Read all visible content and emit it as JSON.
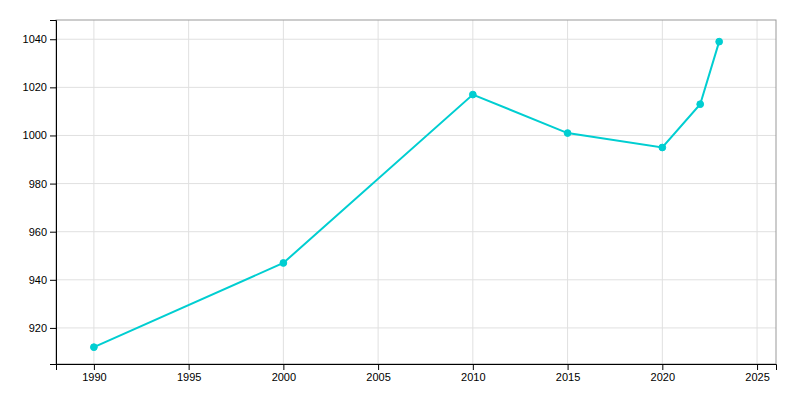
{
  "chart_data": {
    "type": "line",
    "x": [
      1990,
      2000,
      2010,
      2015,
      2020,
      2022,
      2023
    ],
    "values": [
      912,
      947,
      1017,
      1001,
      995,
      1013,
      1039
    ],
    "color": "#00CED1",
    "marker": "circle",
    "xlim": [
      1988,
      2026
    ],
    "ylim": [
      905,
      1048
    ],
    "xticks": [
      1990,
      1995,
      2000,
      2005,
      2010,
      2015,
      2020,
      2025
    ],
    "yticks": [
      920,
      940,
      960,
      980,
      1000,
      1020,
      1040
    ],
    "grid": true
  }
}
